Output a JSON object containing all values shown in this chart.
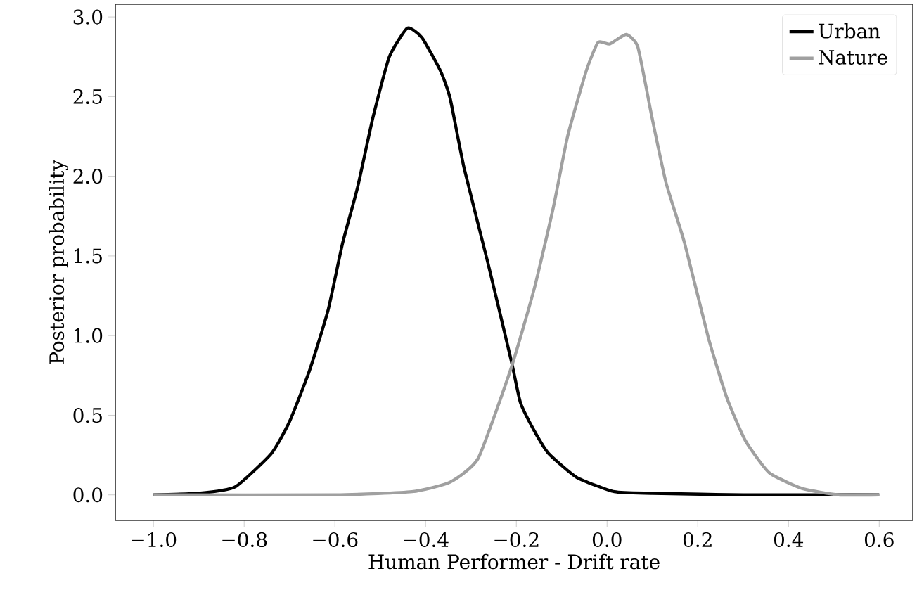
{
  "chart_data": {
    "type": "line",
    "xlabel": "Human Performer - Drift rate",
    "ylabel": "Posterior probability",
    "xlim": [
      -1.084,
      0.674
    ],
    "ylim": [
      -0.16,
      3.08
    ],
    "xticks": [
      {
        "value": -1.0,
        "label": "−1.0"
      },
      {
        "value": -0.8,
        "label": "−0.8"
      },
      {
        "value": -0.6,
        "label": "−0.6"
      },
      {
        "value": -0.4,
        "label": "−0.4"
      },
      {
        "value": -0.2,
        "label": "−0.2"
      },
      {
        "value": 0.0,
        "label": "0.0"
      },
      {
        "value": 0.2,
        "label": "0.2"
      },
      {
        "value": 0.4,
        "label": "0.4"
      },
      {
        "value": 0.6,
        "label": "0.6"
      }
    ],
    "yticks": [
      {
        "value": 0.0,
        "label": "0.0"
      },
      {
        "value": 0.5,
        "label": "0.5"
      },
      {
        "value": 1.0,
        "label": "1.0"
      },
      {
        "value": 1.5,
        "label": "1.5"
      },
      {
        "value": 2.0,
        "label": "2.0"
      },
      {
        "value": 2.5,
        "label": "2.5"
      },
      {
        "value": 3.0,
        "label": "3.0"
      }
    ],
    "grid": false,
    "legend": "top right",
    "line_style": "solid",
    "marker": "none",
    "series": [
      {
        "name": "Urban",
        "color": "#000000",
        "x": [
          -1.0,
          -0.9,
          -0.82,
          -0.74,
          -0.7,
          -0.656,
          -0.615,
          -0.583,
          -0.55,
          -0.516,
          -0.48,
          -0.44,
          -0.408,
          -0.367,
          -0.346,
          -0.315,
          -0.263,
          -0.211,
          -0.191,
          -0.16,
          -0.129,
          -0.067,
          0.016,
          0.1,
          0.3,
          0.6
        ],
        "values": [
          0.0,
          0.01,
          0.05,
          0.26,
          0.46,
          0.78,
          1.16,
          1.58,
          1.93,
          2.37,
          2.75,
          2.93,
          2.87,
          2.66,
          2.49,
          2.05,
          1.46,
          0.84,
          0.58,
          0.4,
          0.26,
          0.11,
          0.02,
          0.01,
          0.0,
          0.0
        ]
      },
      {
        "name": "Nature",
        "color": "#a0a0a0",
        "x": [
          -1.0,
          -0.6,
          -0.43,
          -0.346,
          -0.284,
          -0.211,
          -0.16,
          -0.118,
          -0.087,
          -0.046,
          -0.02,
          0.006,
          0.042,
          0.068,
          0.099,
          0.13,
          0.171,
          0.223,
          0.264,
          0.305,
          0.357,
          0.43,
          0.51,
          0.6
        ],
        "values": [
          0.0,
          0.0,
          0.02,
          0.08,
          0.23,
          0.8,
          1.3,
          1.81,
          2.25,
          2.66,
          2.84,
          2.83,
          2.89,
          2.81,
          2.37,
          1.96,
          1.58,
          0.99,
          0.61,
          0.34,
          0.14,
          0.04,
          0.0,
          0.0
        ]
      }
    ]
  }
}
